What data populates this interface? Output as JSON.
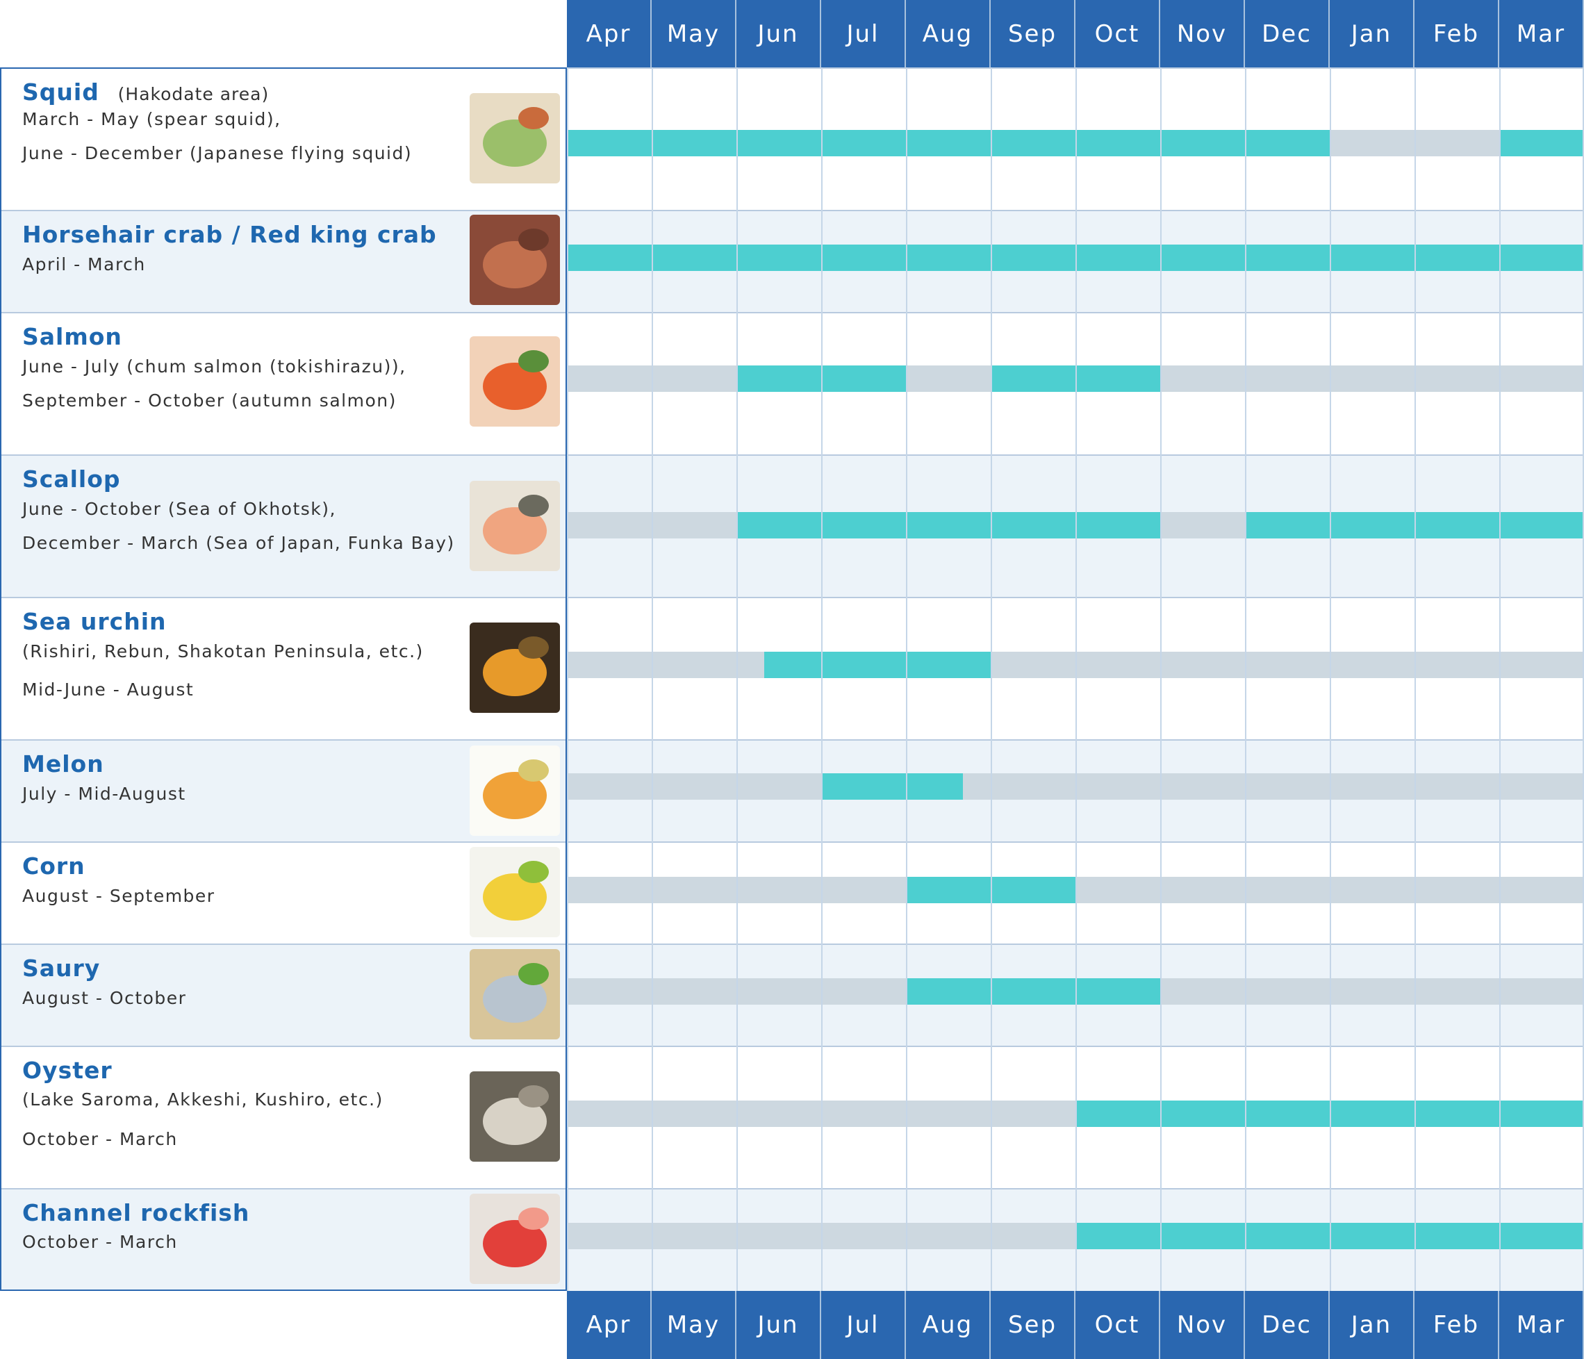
{
  "chart_data": {
    "type": "gantt",
    "months": [
      "Apr",
      "May",
      "Jun",
      "Jul",
      "Aug",
      "Sep",
      "Oct",
      "Nov",
      "Dec",
      "Jan",
      "Feb",
      "Mar"
    ],
    "items": [
      {
        "name": "Squid",
        "area": "(Hakodate area)",
        "lines": [
          "March - May (spear squid),",
          "June - December (Japanese flying squid)"
        ],
        "image": "squid-sashimi-photo",
        "in_season": [
          [
            0,
            9
          ],
          [
            11,
            12
          ]
        ]
      },
      {
        "name": "Horsehair crab / Red king crab",
        "area": "",
        "lines": [
          "April - March"
        ],
        "image": "crab-photo",
        "in_season": [
          [
            0,
            12
          ]
        ]
      },
      {
        "name": "Salmon",
        "area": "",
        "lines": [
          "June - July (chum salmon (tokishirazu)),",
          "September - October (autumn salmon)"
        ],
        "image": "salmon-roe-bowl-photo",
        "in_season": [
          [
            2,
            4
          ],
          [
            5,
            7
          ]
        ]
      },
      {
        "name": "Scallop",
        "area": "",
        "lines": [
          "June - October (Sea of Okhotsk),",
          "December - March (Sea of Japan, Funka Bay)"
        ],
        "image": "scallop-photo",
        "in_season": [
          [
            2,
            7
          ],
          [
            8,
            12
          ]
        ]
      },
      {
        "name": "Sea urchin",
        "area": "",
        "lines": [
          " (Rishiri, Rebun, Shakotan Peninsula, etc.)",
          "Mid-June - August"
        ],
        "image": "sea-urchin-photo",
        "in_season": [
          [
            2.33,
            5
          ]
        ]
      },
      {
        "name": "Melon",
        "area": "",
        "lines": [
          "July - Mid-August"
        ],
        "image": "melon-photo",
        "in_season": [
          [
            3,
            4.67
          ]
        ]
      },
      {
        "name": "Corn",
        "area": "",
        "lines": [
          "August - September"
        ],
        "image": "corn-photo",
        "in_season": [
          [
            4,
            6
          ]
        ]
      },
      {
        "name": "Saury",
        "area": "",
        "lines": [
          "August - October"
        ],
        "image": "saury-photo",
        "in_season": [
          [
            4,
            7
          ]
        ]
      },
      {
        "name": "Oyster",
        "area": "",
        "lines": [
          "(Lake Saroma, Akkeshi, Kushiro, etc.)",
          "October - March"
        ],
        "image": "oyster-photo",
        "in_season": [
          [
            6,
            12
          ]
        ]
      },
      {
        "name": "Channel rockfish",
        "area": "",
        "lines": [
          "October - March"
        ],
        "image": "rockfish-photo",
        "in_season": [
          [
            6,
            12
          ]
        ]
      }
    ],
    "colors": {
      "header": "#2a67b0",
      "in_season": "#4dcfd0",
      "off_season": "#cdd8e0",
      "title": "#1e67af"
    }
  }
}
